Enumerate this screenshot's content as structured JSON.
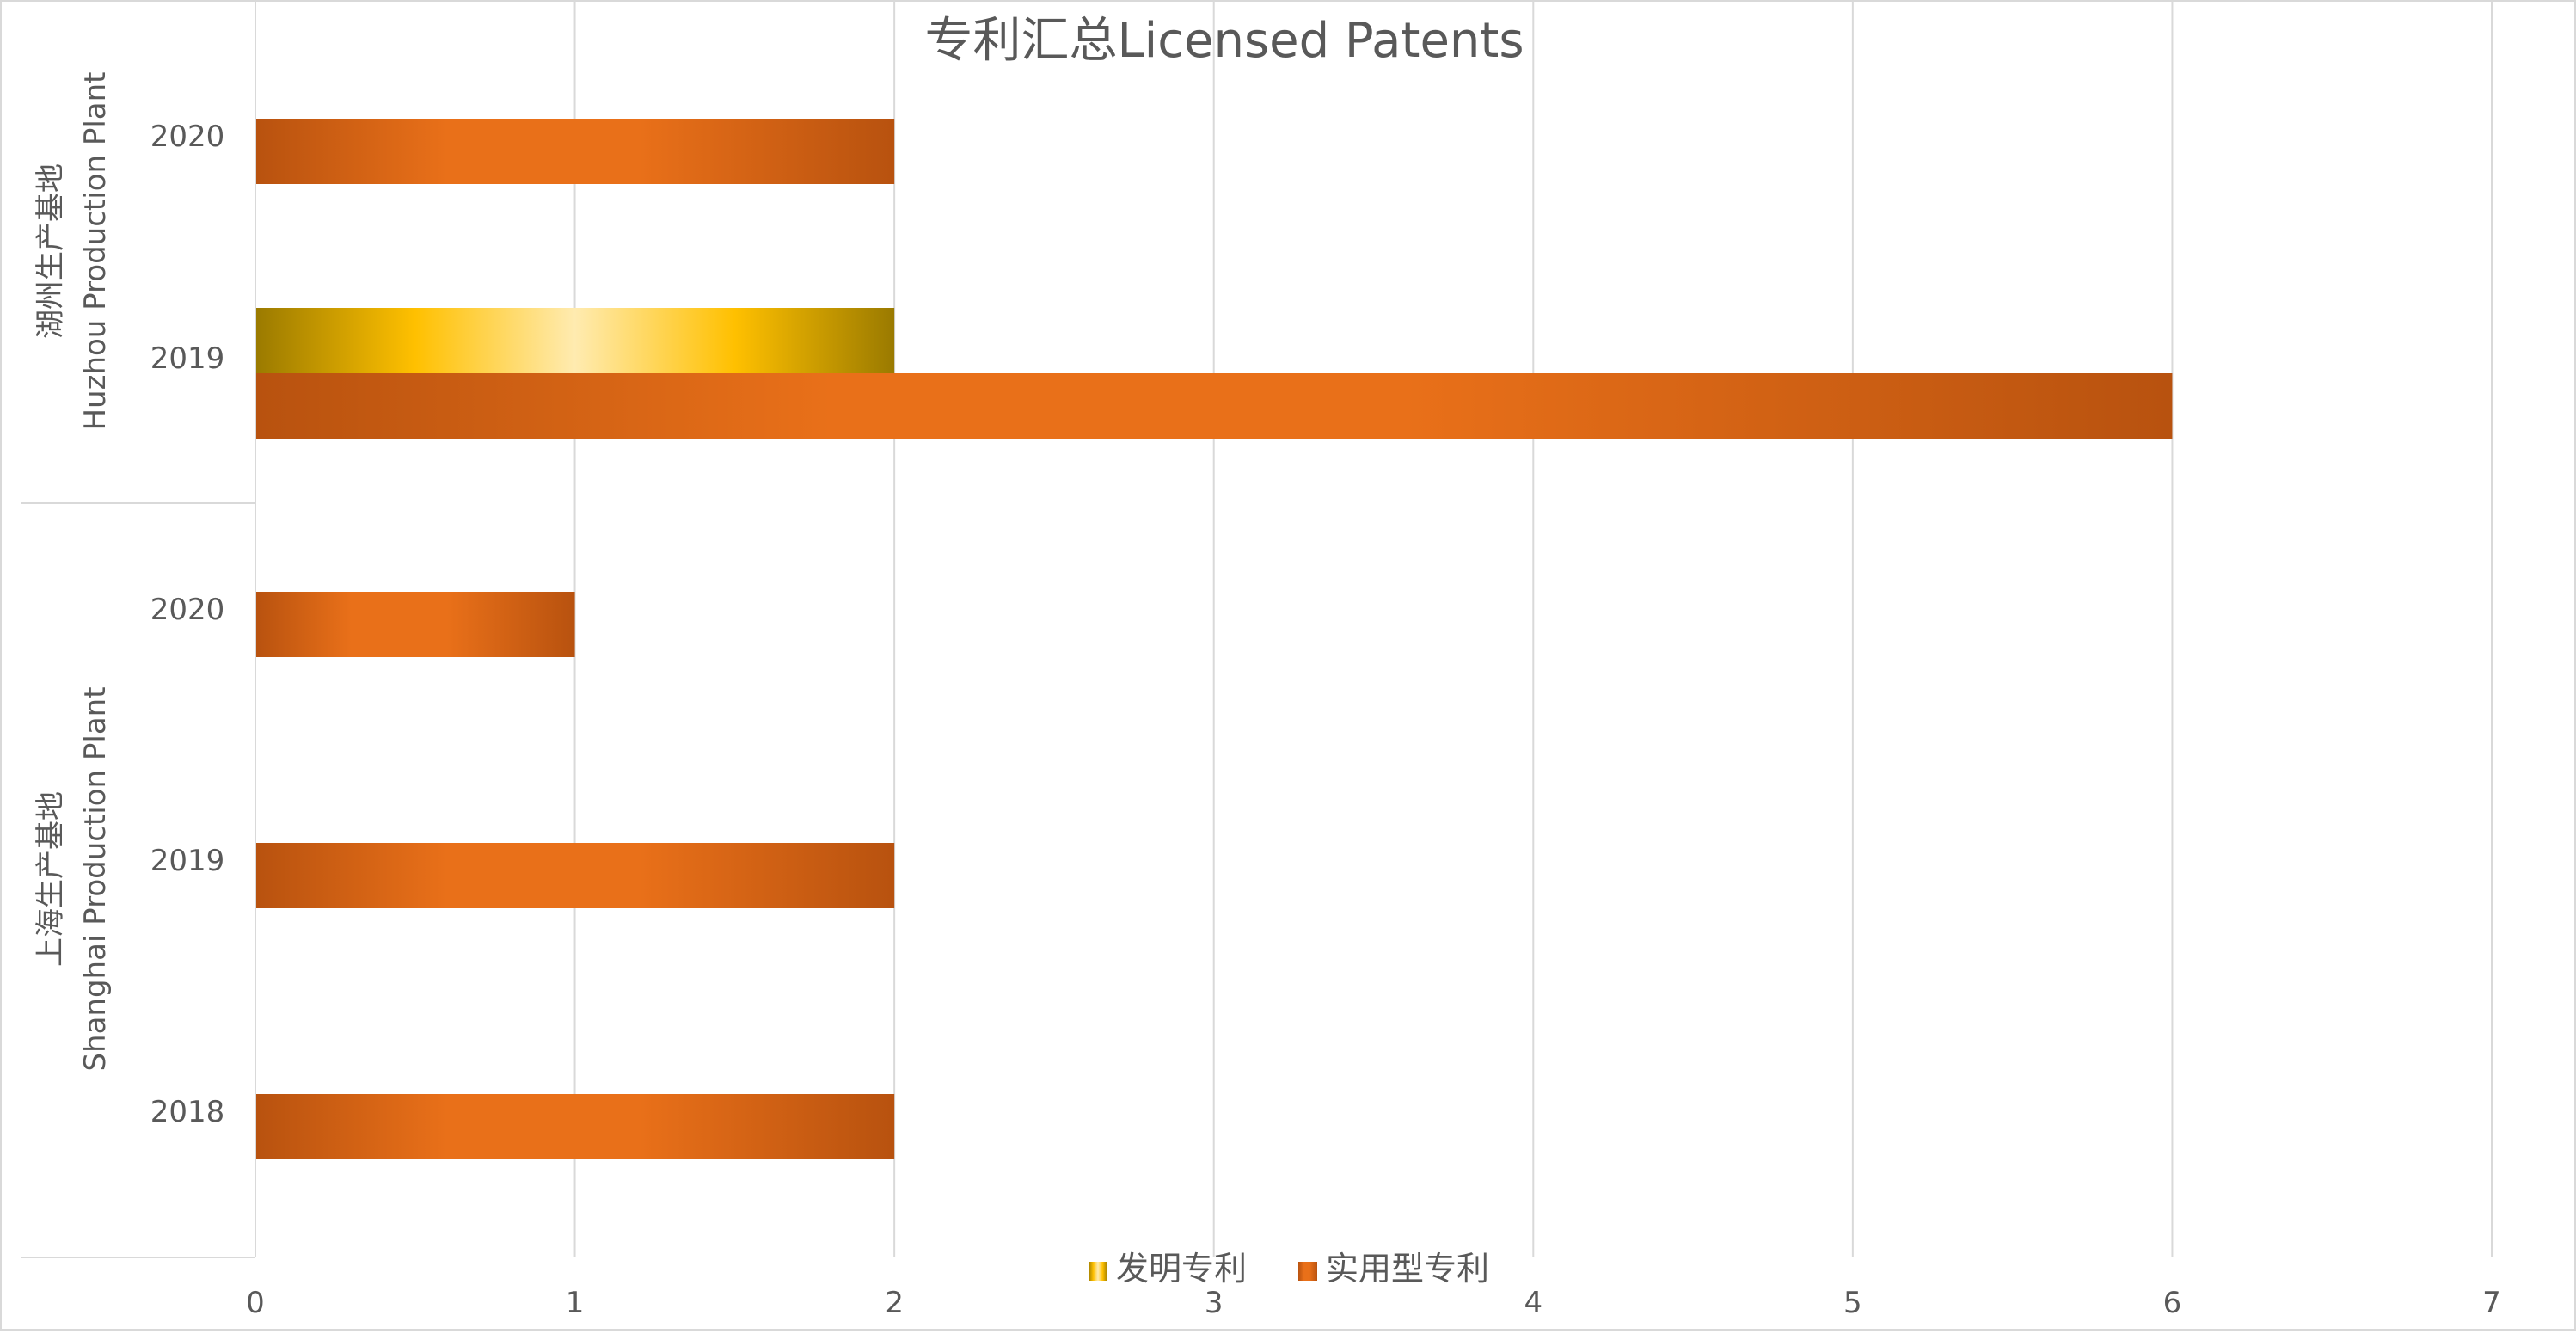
{
  "chart_data": {
    "type": "bar",
    "orientation": "horizontal",
    "title": "专利汇总Licensed Patents",
    "groups": [
      {
        "label_line1": "湖州生产基地",
        "label_line2": "Huzhou Production Plant",
        "categories": [
          "2020",
          "2019"
        ]
      },
      {
        "label_line1": "上海生产基地",
        "label_line2": "Shanghai Production Plant",
        "categories": [
          "2020",
          "2019",
          "2018"
        ]
      }
    ],
    "categories": [
      "2020",
      "2019",
      "2020",
      "2019",
      "2018"
    ],
    "series": [
      {
        "name": "发明专利",
        "color": "#FFC000",
        "values": [
          0,
          2,
          0,
          0,
          0
        ]
      },
      {
        "name": "实用型专利",
        "color": "#E97019",
        "values": [
          2,
          6,
          1,
          2,
          2
        ]
      }
    ],
    "xlim": [
      0,
      7
    ],
    "xticks": [
      "0",
      "1",
      "2",
      "3",
      "4",
      "5",
      "6",
      "7"
    ],
    "grid": true,
    "legend_position": "bottom"
  }
}
